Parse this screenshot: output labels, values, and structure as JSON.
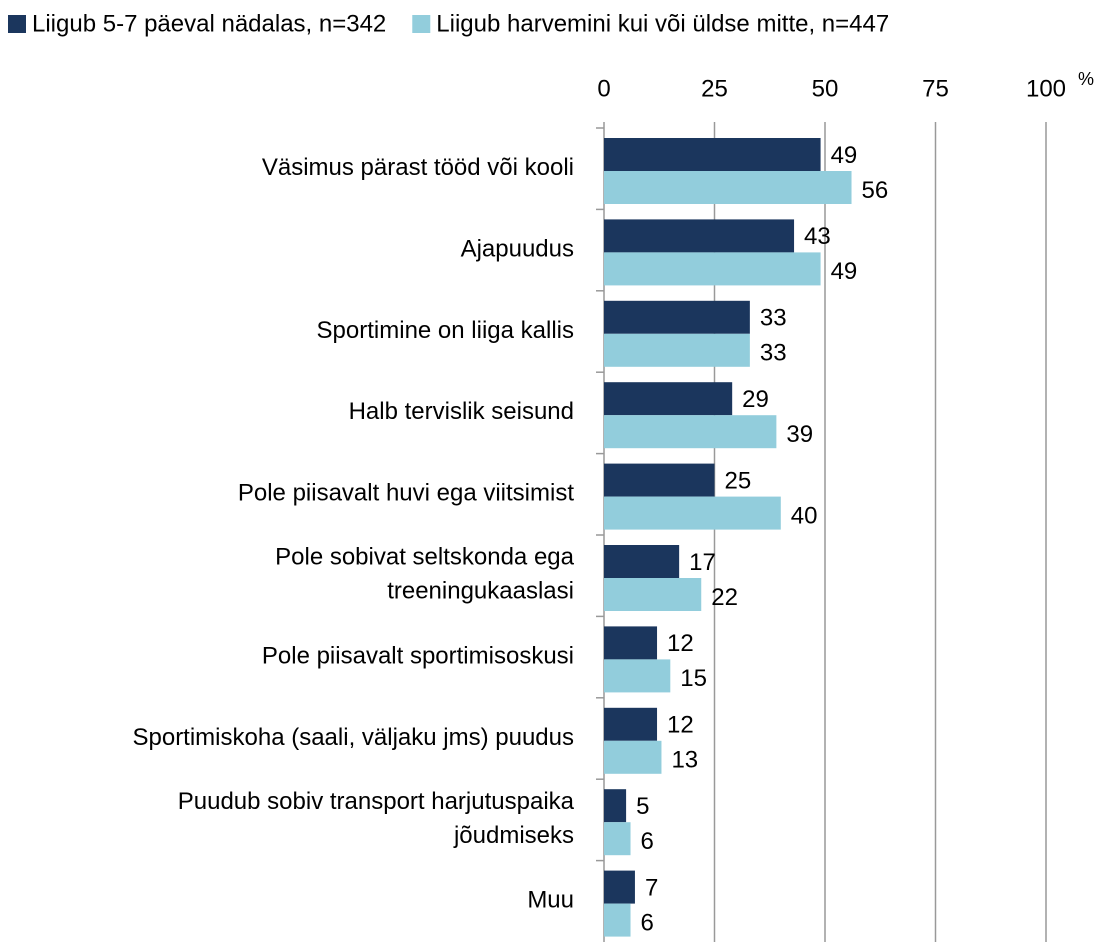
{
  "chart_data": {
    "type": "barh",
    "x_unit": "%",
    "categories": [
      "Väsimus pärast tööd või kooli",
      "Ajapuudus",
      "Sportimine on liiga kallis",
      "Halb tervislik seisund",
      "Pole piisavalt huvi ega viitsimist",
      "Pole sobivat seltskonda ega\ntreeningukaaslasi",
      "Pole piisavalt sportimisoskusi",
      "Sportimiskoha (saali, väljaku jms) puudus",
      "Puudub sobiv transport harjutuspaika\njõudmiseks",
      "Muu"
    ],
    "series": [
      {
        "name": "Liigub 5-7 päeval nädalas, n=342",
        "color": "#1b365d",
        "values": [
          49,
          43,
          33,
          29,
          25,
          17,
          12,
          12,
          5,
          7
        ]
      },
      {
        "name": "Liigub harvemini kui või üldse mitte, n=447",
        "color": "#92cddc",
        "values": [
          56,
          49,
          33,
          39,
          40,
          22,
          15,
          13,
          6,
          6
        ]
      }
    ],
    "xlim": [
      0,
      100
    ],
    "xticks": [
      0,
      25,
      50,
      75,
      100
    ],
    "grid": true,
    "legend": "top"
  }
}
